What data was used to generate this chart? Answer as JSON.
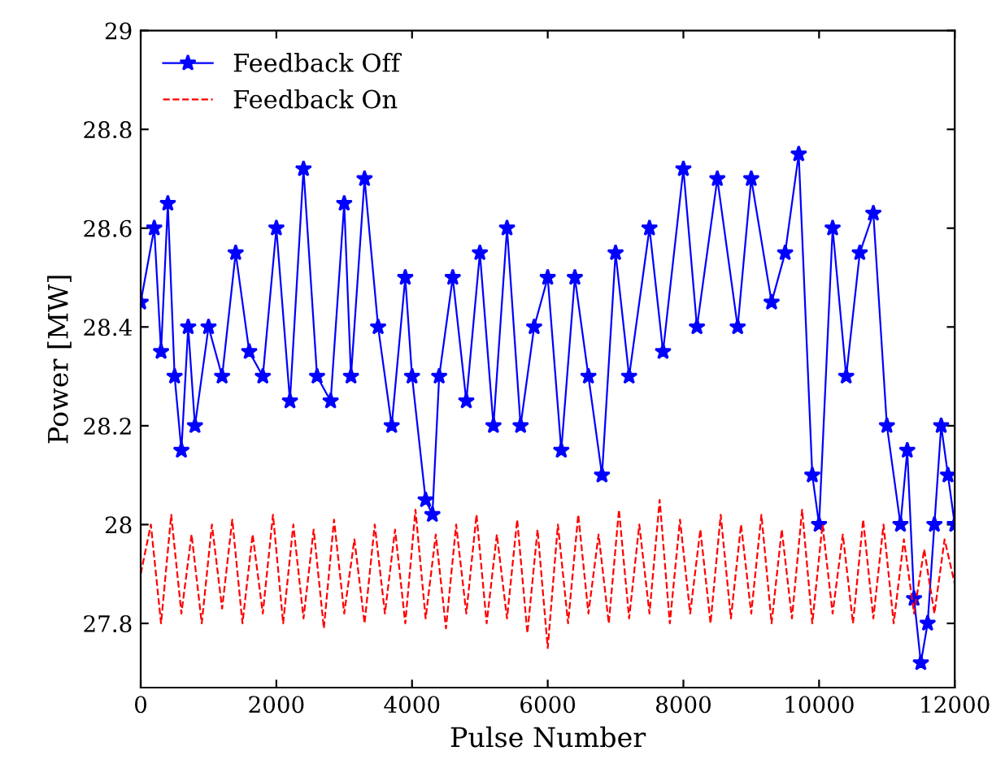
{
  "chart_data": {
    "type": "line",
    "xlabel": "Pulse Number",
    "ylabel": "Power [MW]",
    "xlim": [
      0,
      12000
    ],
    "xticks": [
      0,
      2000,
      4000,
      6000,
      8000,
      10000,
      12000
    ],
    "ylim": [
      27.67,
      29
    ],
    "yticks": [
      27.8,
      28,
      28.2,
      28.4,
      28.6,
      28.8,
      29
    ],
    "grid": false,
    "legend": "top left",
    "series": [
      {
        "name": "Feedback Off",
        "color": "#0000ff",
        "marker": "star",
        "line_style": "solid",
        "x": [
          0,
          200,
          300,
          400,
          500,
          600,
          700,
          800,
          1000,
          1200,
          1400,
          1600,
          1800,
          2000,
          2200,
          2400,
          2600,
          2800,
          3000,
          3100,
          3300,
          3500,
          3700,
          3900,
          4000,
          4200,
          4300,
          4400,
          4600,
          4800,
          5000,
          5200,
          5400,
          5600,
          5800,
          6000,
          6200,
          6400,
          6600,
          6800,
          7000,
          7200,
          7500,
          7700,
          8000,
          8200,
          8500,
          8800,
          9000,
          9300,
          9500,
          9700,
          9900,
          10000,
          10200,
          10400,
          10600,
          10800,
          11000,
          11200,
          11300,
          11400,
          11500,
          11600,
          11700,
          11800,
          11900,
          12000
        ],
        "values": [
          28.45,
          28.6,
          28.35,
          28.65,
          28.3,
          28.15,
          28.4,
          28.2,
          28.4,
          28.3,
          28.55,
          28.35,
          28.3,
          28.6,
          28.25,
          28.72,
          28.3,
          28.25,
          28.65,
          28.3,
          28.7,
          28.4,
          28.2,
          28.5,
          28.3,
          28.05,
          28.02,
          28.3,
          28.5,
          28.25,
          28.55,
          28.2,
          28.6,
          28.2,
          28.4,
          28.5,
          28.15,
          28.5,
          28.3,
          28.1,
          28.55,
          28.3,
          28.6,
          28.35,
          28.72,
          28.4,
          28.7,
          28.4,
          28.7,
          28.45,
          28.55,
          28.75,
          28.1,
          28.0,
          28.6,
          28.3,
          28.55,
          28.63,
          28.2,
          28.0,
          28.15,
          27.85,
          27.72,
          27.8,
          28.0,
          28.2,
          28.1,
          28.0
        ]
      },
      {
        "name": "Feedback On",
        "color": "#ff0000",
        "marker": "none",
        "line_style": "dashed",
        "x": [
          0,
          150,
          300,
          450,
          600,
          750,
          900,
          1050,
          1200,
          1350,
          1500,
          1650,
          1800,
          1950,
          2100,
          2250,
          2400,
          2550,
          2700,
          2850,
          3000,
          3150,
          3300,
          3450,
          3600,
          3750,
          3900,
          4050,
          4200,
          4350,
          4500,
          4650,
          4800,
          4950,
          5100,
          5250,
          5400,
          5550,
          5700,
          5850,
          6000,
          6150,
          6300,
          6450,
          6600,
          6750,
          6900,
          7050,
          7200,
          7350,
          7500,
          7650,
          7800,
          7950,
          8100,
          8250,
          8400,
          8550,
          8700,
          8850,
          9000,
          9150,
          9300,
          9450,
          9600,
          9750,
          9900,
          10050,
          10200,
          10350,
          10500,
          10650,
          10800,
          10950,
          11100,
          11250,
          11400,
          11550,
          11700,
          11850,
          12000
        ],
        "values": [
          27.9,
          28.0,
          27.8,
          28.02,
          27.82,
          27.98,
          27.8,
          28.0,
          27.83,
          28.01,
          27.8,
          27.98,
          27.82,
          28.02,
          27.8,
          28.0,
          27.81,
          27.99,
          27.79,
          28.01,
          27.82,
          27.97,
          27.8,
          28.0,
          27.82,
          27.99,
          27.8,
          28.03,
          27.81,
          27.98,
          27.79,
          28.0,
          27.82,
          28.02,
          27.8,
          27.98,
          27.81,
          28.01,
          27.78,
          27.99,
          27.75,
          28.0,
          27.8,
          28.02,
          27.82,
          27.98,
          27.8,
          28.03,
          27.81,
          28.0,
          27.82,
          28.05,
          27.8,
          28.01,
          27.82,
          27.99,
          27.8,
          28.02,
          27.81,
          28.0,
          27.82,
          28.02,
          27.8,
          27.99,
          27.81,
          28.03,
          27.8,
          28.0,
          27.82,
          27.98,
          27.8,
          28.01,
          27.81,
          28.0,
          27.8,
          27.97,
          27.82,
          27.95,
          27.82,
          27.97,
          27.88
        ]
      }
    ]
  }
}
